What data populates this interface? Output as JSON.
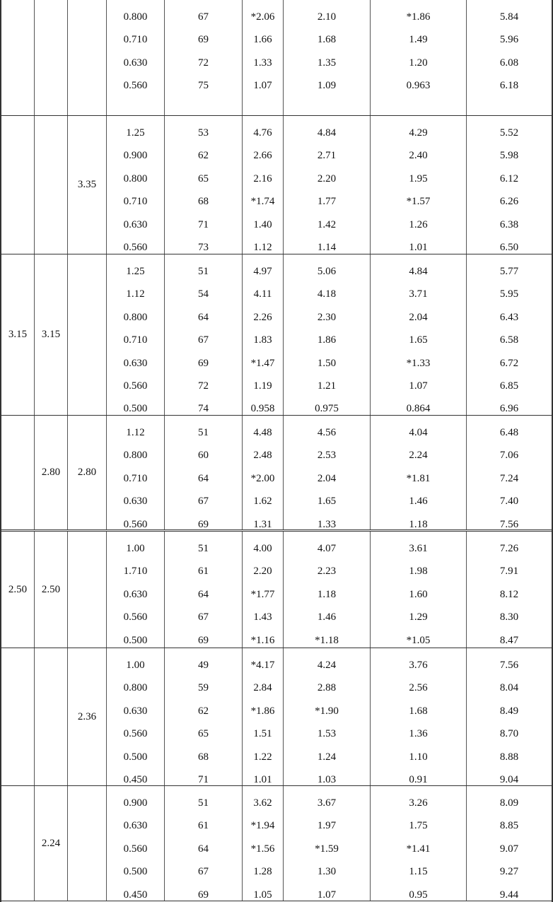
{
  "groups": [
    {
      "c1": "",
      "c2": "",
      "c3": "",
      "rows": [
        [
          "0.800",
          "67",
          "*2.06",
          "2.10",
          "*1.86",
          "5.84"
        ],
        [
          "0.710",
          "69",
          "1.66",
          "1.68",
          "1.49",
          "5.96"
        ],
        [
          "0.630",
          "72",
          "1.33",
          "1.35",
          "1.20",
          "6.08"
        ],
        [
          "0.560",
          "75",
          "1.07",
          "1.09",
          "0.963",
          "6.18"
        ]
      ]
    },
    {
      "c1": "",
      "c2": "",
      "c3": "3.35",
      "rows": [
        [
          "1.25",
          "53",
          "4.76",
          "4.84",
          "4.29",
          "5.52"
        ],
        [
          "0.900",
          "62",
          "2.66",
          "2.71",
          "2.40",
          "5.98"
        ],
        [
          "0.800",
          "65",
          "2.16",
          "2.20",
          "1.95",
          "6.12"
        ],
        [
          "0.710",
          "68",
          "*1.74",
          "1.77",
          "*1.57",
          "6.26"
        ],
        [
          "0.630",
          "71",
          "1.40",
          "1.42",
          "1.26",
          "6.38"
        ],
        [
          "0.560",
          "73",
          "1.12",
          "1.14",
          "1.01",
          "6.50"
        ]
      ]
    },
    {
      "c1": "3.15",
      "c2": "3.15",
      "c3": "",
      "rows": [
        [
          "1.25",
          "51",
          "4.97",
          "5.06",
          "4.84",
          "5.77"
        ],
        [
          "1.12",
          "54",
          "4.11",
          "4.18",
          "3.71",
          "5.95"
        ],
        [
          "0.800",
          "64",
          "2.26",
          "2.30",
          "2.04",
          "6.43"
        ],
        [
          "0.710",
          "67",
          "1.83",
          "1.86",
          "1.65",
          "6.58"
        ],
        [
          "0.630",
          "69",
          "*1.47",
          "1.50",
          "*1.33",
          "6.72"
        ],
        [
          "0.560",
          "72",
          "1.19",
          "1.21",
          "1.07",
          "6.85"
        ],
        [
          "0.500",
          "74",
          "0.958",
          "0.975",
          "0.864",
          "6.96"
        ]
      ]
    },
    {
      "c1": "",
      "c2": "2.80",
      "c3": "2.80",
      "rows": [
        [
          "1.12",
          "51",
          "4.48",
          "4.56",
          "4.04",
          "6.48"
        ],
        [
          "0.800",
          "60",
          "2.48",
          "2.53",
          "2.24",
          "7.06"
        ],
        [
          "0.710",
          "64",
          "*2.00",
          "2.04",
          "*1.81",
          "7.24"
        ],
        [
          "0.630",
          "67",
          "1.62",
          "1.65",
          "1.46",
          "7.40"
        ],
        [
          "0.560",
          "69",
          "1.31",
          "1.33",
          "1.18",
          "7.56"
        ]
      ]
    },
    {
      "c1": "2.50",
      "c2": "2.50",
      "c3": "",
      "rows": [
        [
          "1.00",
          "51",
          "4.00",
          "4.07",
          "3.61",
          "7.26"
        ],
        [
          "1.710",
          "61",
          "2.20",
          "2.23",
          "1.98",
          "7.91"
        ],
        [
          "0.630",
          "64",
          "*1.77",
          "1.18",
          "1.60",
          "8.12"
        ],
        [
          "0.560",
          "67",
          "1.43",
          "1.46",
          "1.29",
          "8.30"
        ],
        [
          "0.500",
          "69",
          "*1.16",
          "*1.18",
          "*1.05",
          "8.47"
        ]
      ]
    },
    {
      "c1": "",
      "c2": "",
      "c3": "2.36",
      "rows": [
        [
          "1.00",
          "49",
          "*4.17",
          "4.24",
          "3.76",
          "7.56"
        ],
        [
          "0.800",
          "59",
          "2.84",
          "2.88",
          "2.56",
          "8.04"
        ],
        [
          "0.630",
          "62",
          "*1.86",
          "*1.90",
          "1.68",
          "8.49"
        ],
        [
          "0.560",
          "65",
          "1.51",
          "1.53",
          "1.36",
          "8.70"
        ],
        [
          "0.500",
          "68",
          "1.22",
          "1.24",
          "1.10",
          "8.88"
        ],
        [
          "0.450",
          "71",
          "1.01",
          "1.03",
          "0.91",
          "9.04"
        ]
      ]
    },
    {
      "c1": "",
      "c2": "2.24",
      "c3": "",
      "rows": [
        [
          "0.900",
          "51",
          "3.62",
          "3.67",
          "3.26",
          "8.09"
        ],
        [
          "0.630",
          "61",
          "*1.94",
          "1.97",
          "1.75",
          "8.85"
        ],
        [
          "0.560",
          "64",
          "*1.56",
          "*1.59",
          "*1.41",
          "9.07"
        ],
        [
          "0.500",
          "67",
          "1.28",
          "1.30",
          "1.15",
          "9.27"
        ],
        [
          "0.450",
          "69",
          "1.05",
          "1.07",
          "0.95",
          "9.44"
        ]
      ]
    }
  ]
}
